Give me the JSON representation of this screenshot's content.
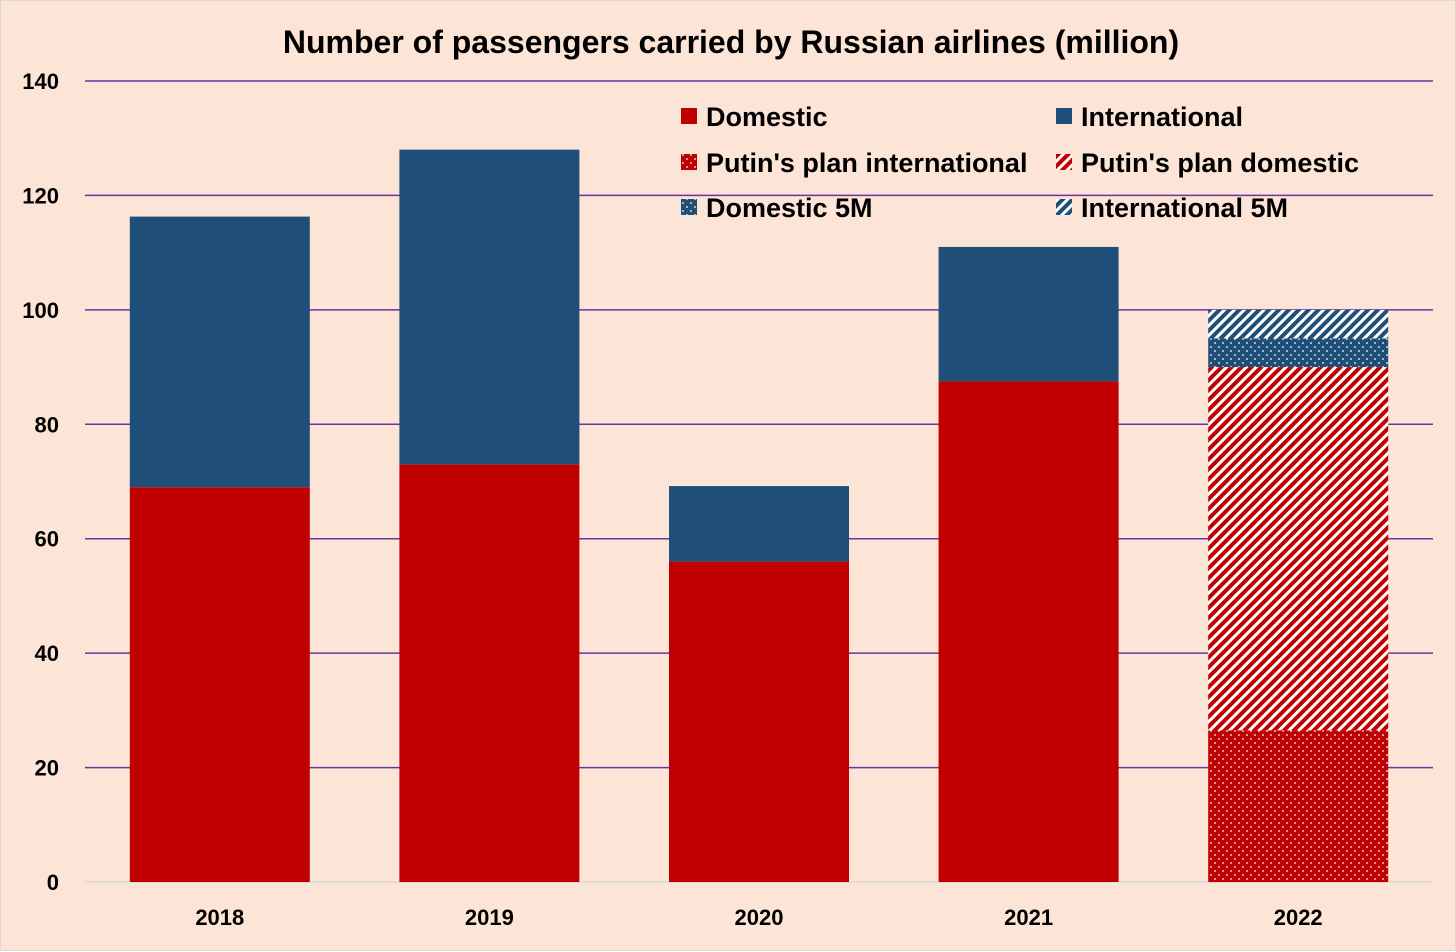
{
  "chart_data": {
    "type": "bar",
    "stacked": true,
    "title": "Number of passengers carried by Russian airlines (million)",
    "xlabel": "",
    "ylabel": "",
    "categories": [
      "2018",
      "2019",
      "2020",
      "2021",
      "2022"
    ],
    "ylim": [
      0,
      140
    ],
    "yticks": [
      0,
      20,
      40,
      60,
      80,
      100,
      120,
      140
    ],
    "grid": true,
    "legend_position": "top-right",
    "series": [
      {
        "name": "Domestic",
        "pattern": "solid",
        "color": "#c00000",
        "values": [
          69,
          73,
          56,
          87.5,
          null
        ]
      },
      {
        "name": "International",
        "pattern": "solid",
        "color": "#1f4e79",
        "values": [
          47.3,
          55,
          13.2,
          23.5,
          null
        ]
      },
      {
        "name": "Putin's plan international",
        "pattern": "dots",
        "color": "#c00000",
        "values": [
          null,
          null,
          null,
          null,
          26.5
        ]
      },
      {
        "name": "Putin's plan domestic",
        "pattern": "diagonal-stripes",
        "color": "#c00000",
        "values": [
          null,
          null,
          null,
          null,
          63.5
        ]
      },
      {
        "name": "Domestic 5M",
        "pattern": "dots",
        "color": "#1f4e79",
        "values": [
          null,
          null,
          null,
          null,
          5
        ]
      },
      {
        "name": "International 5M",
        "pattern": "diagonal-stripes",
        "color": "#1f4e79",
        "values": [
          null,
          null,
          null,
          null,
          5
        ]
      }
    ],
    "colors": {
      "background": "#fce4d6",
      "gridline": "#7030a0",
      "domestic": "#c00000",
      "international": "#1f4e79"
    }
  }
}
